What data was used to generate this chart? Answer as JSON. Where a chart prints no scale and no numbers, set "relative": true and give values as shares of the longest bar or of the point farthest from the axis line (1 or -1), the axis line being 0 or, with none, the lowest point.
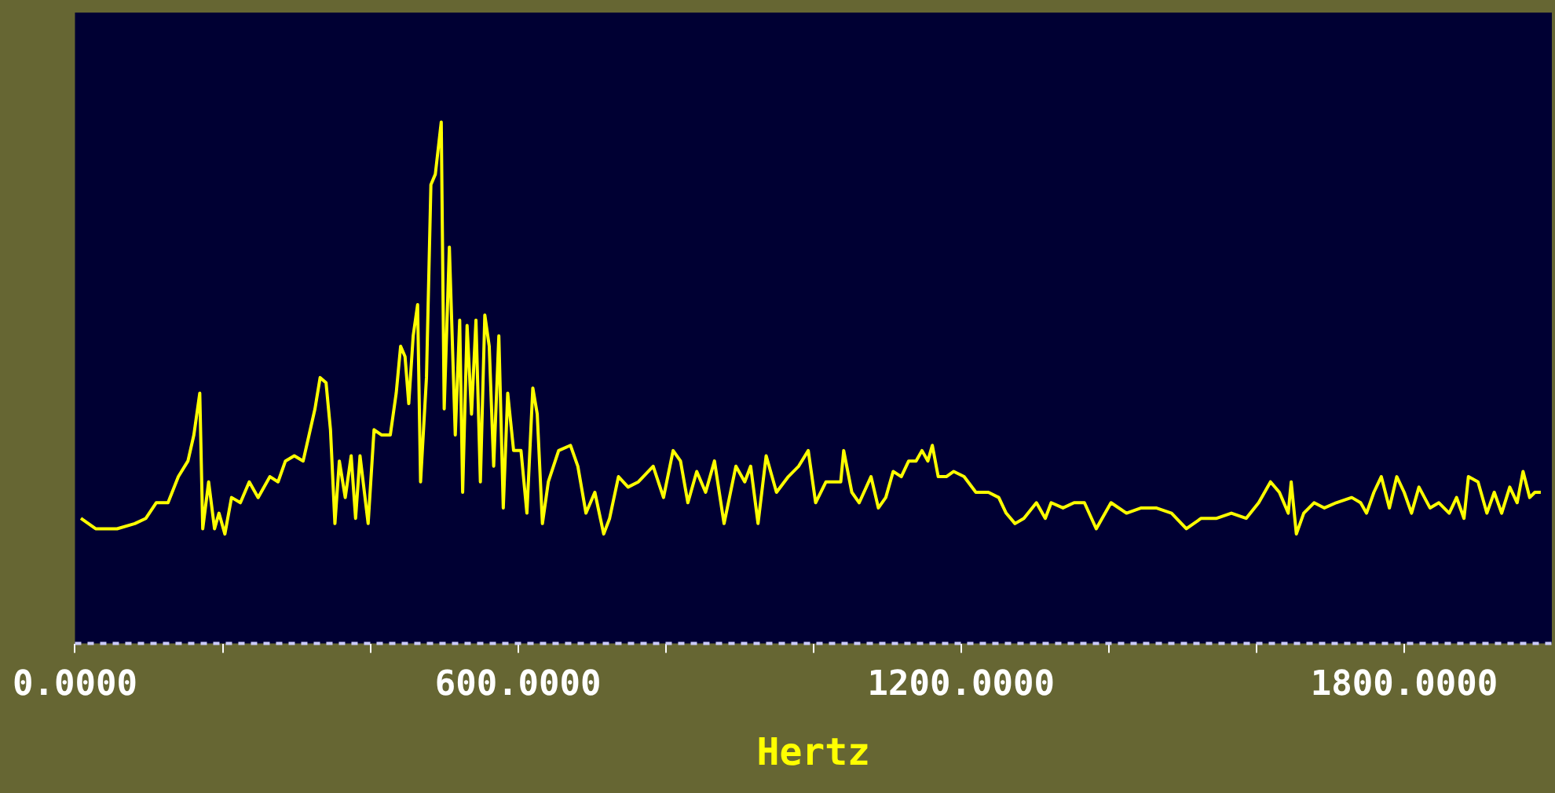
{
  "chart_data": {
    "type": "line",
    "xlabel": "Hertz",
    "relative": true,
    "legend": false,
    "grid": false,
    "marker": "none",
    "xlim": [
      0,
      2000
    ],
    "xticks": [
      {
        "value": 0,
        "label": "0.0000"
      },
      {
        "value": 200,
        "label": null
      },
      {
        "value": 400,
        "label": null
      },
      {
        "value": 600,
        "label": "600.0000"
      },
      {
        "value": 800,
        "label": null
      },
      {
        "value": 1000,
        "label": null
      },
      {
        "value": 1200,
        "label": "1200.0000"
      },
      {
        "value": 1400,
        "label": null
      },
      {
        "value": 1600,
        "label": null
      },
      {
        "value": 1800,
        "label": "1800.0000"
      }
    ],
    "series": [
      {
        "color": "#ffff00",
        "x": [
          8,
          28,
          57,
          81,
          96,
          110,
          126,
          140,
          153,
          161,
          169,
          173,
          181,
          189,
          195,
          203,
          212,
          224,
          236,
          248,
          264,
          275,
          285,
          297,
          309,
          317,
          325,
          332,
          340,
          346,
          352,
          358,
          366,
          374,
          380,
          386,
          397,
          405,
          415,
          427,
          435,
          441,
          447,
          452,
          458,
          464,
          468,
          476,
          482,
          488,
          496,
          500,
          507,
          515,
          521,
          525,
          531,
          537,
          543,
          549,
          555,
          561,
          567,
          574,
          580,
          586,
          594,
          604,
          612,
          620,
          626,
          633,
          641,
          655,
          671,
          681,
          692,
          704,
          716,
          724,
          736,
          749,
          763,
          783,
          797,
          810,
          820,
          830,
          842,
          854,
          866,
          879,
          895,
          907,
          915,
          925,
          936,
          950,
          966,
          980,
          993,
          1003,
          1017,
          1037,
          1041,
          1052,
          1062,
          1078,
          1088,
          1098,
          1108,
          1119,
          1129,
          1139,
          1147,
          1155,
          1161,
          1169,
          1180,
          1190,
          1204,
          1220,
          1237,
          1251,
          1261,
          1273,
          1285,
          1302,
          1314,
          1322,
          1338,
          1353,
          1367,
          1383,
          1403,
          1424,
          1444,
          1464,
          1485,
          1505,
          1525,
          1546,
          1566,
          1586,
          1603,
          1619,
          1631,
          1643,
          1647,
          1654,
          1664,
          1678,
          1692,
          1708,
          1729,
          1741,
          1749,
          1759,
          1769,
          1780,
          1790,
          1800,
          1810,
          1820,
          1835,
          1847,
          1861,
          1871,
          1881,
          1887,
          1900,
          1912,
          1922,
          1932,
          1943,
          1953,
          1961,
          1970,
          1977,
          1985
        ],
        "values": [
          0.24,
          0.22,
          0.22,
          0.23,
          0.24,
          0.27,
          0.27,
          0.32,
          0.35,
          0.4,
          0.48,
          0.22,
          0.31,
          0.22,
          0.25,
          0.21,
          0.28,
          0.27,
          0.31,
          0.28,
          0.32,
          0.31,
          0.35,
          0.36,
          0.35,
          0.4,
          0.45,
          0.51,
          0.5,
          0.41,
          0.23,
          0.35,
          0.28,
          0.36,
          0.24,
          0.36,
          0.23,
          0.41,
          0.4,
          0.4,
          0.48,
          0.57,
          0.55,
          0.46,
          0.59,
          0.65,
          0.31,
          0.51,
          0.88,
          0.9,
          1,
          0.45,
          0.76,
          0.4,
          0.62,
          0.29,
          0.61,
          0.44,
          0.62,
          0.31,
          0.63,
          0.57,
          0.34,
          0.59,
          0.26,
          0.48,
          0.37,
          0.37,
          0.25,
          0.49,
          0.44,
          0.23,
          0.31,
          0.37,
          0.38,
          0.34,
          0.25,
          0.29,
          0.21,
          0.24,
          0.32,
          0.3,
          0.31,
          0.34,
          0.28,
          0.37,
          0.35,
          0.27,
          0.33,
          0.29,
          0.35,
          0.23,
          0.34,
          0.31,
          0.34,
          0.23,
          0.36,
          0.29,
          0.32,
          0.34,
          0.37,
          0.27,
          0.31,
          0.31,
          0.37,
          0.29,
          0.27,
          0.32,
          0.26,
          0.28,
          0.33,
          0.32,
          0.35,
          0.35,
          0.37,
          0.35,
          0.38,
          0.32,
          0.32,
          0.33,
          0.32,
          0.29,
          0.29,
          0.28,
          0.25,
          0.23,
          0.24,
          0.27,
          0.24,
          0.27,
          0.26,
          0.27,
          0.27,
          0.22,
          0.27,
          0.25,
          0.26,
          0.26,
          0.25,
          0.22,
          0.24,
          0.24,
          0.25,
          0.24,
          0.27,
          0.31,
          0.29,
          0.25,
          0.31,
          0.21,
          0.25,
          0.27,
          0.26,
          0.27,
          0.28,
          0.27,
          0.25,
          0.29,
          0.32,
          0.26,
          0.32,
          0.29,
          0.25,
          0.3,
          0.26,
          0.27,
          0.25,
          0.28,
          0.24,
          0.32,
          0.31,
          0.25,
          0.29,
          0.25,
          0.3,
          0.27,
          0.33,
          0.28,
          0.29,
          0.29
        ]
      }
    ]
  }
}
